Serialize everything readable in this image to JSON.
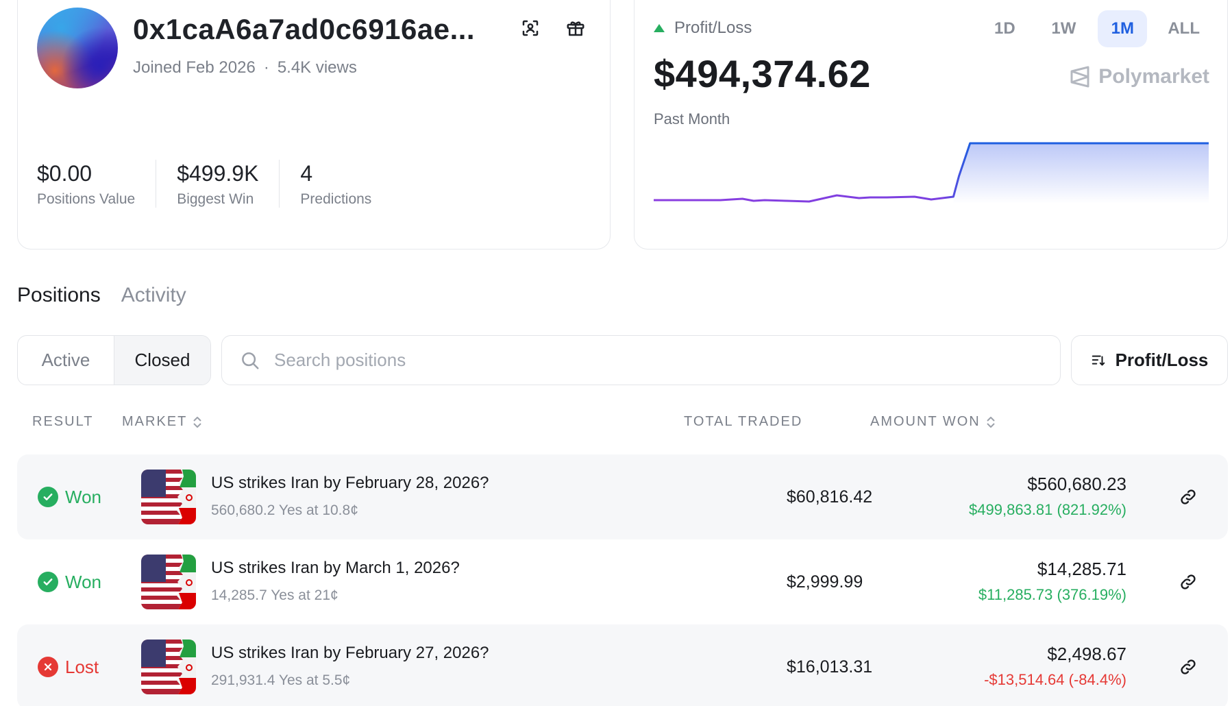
{
  "profile": {
    "username": "0x1caA6a7ad0c6916ae...",
    "joined": "Joined Feb 2026",
    "separator": "·",
    "views": "5.4K views",
    "stats": [
      {
        "value": "$0.00",
        "label": "Positions Value"
      },
      {
        "value": "$499.9K",
        "label": "Biggest Win"
      },
      {
        "value": "4",
        "label": "Predictions"
      }
    ]
  },
  "pnl": {
    "title": "Profit/Loss",
    "value": "$494,374.62",
    "period": "Past Month",
    "brand": "Polymarket",
    "ranges": [
      "1D",
      "1W",
      "1M",
      "ALL"
    ],
    "active_range": "1M",
    "chart_data": {
      "type": "line",
      "x": [
        0,
        4,
        8,
        12,
        16,
        18,
        20,
        24,
        28,
        33,
        37,
        39,
        42,
        47,
        50,
        54,
        55,
        57,
        100
      ],
      "values": [
        0.05,
        0.05,
        0.05,
        0.05,
        0.07,
        0.04,
        0.05,
        0.04,
        0.03,
        0.12,
        0.08,
        0.09,
        0.09,
        0.1,
        0.06,
        0.1,
        0.4,
        0.88,
        0.88
      ],
      "colors": {
        "line_start": "#8b3ee0",
        "line_end": "#1f5fe0",
        "fill": "#6b85ee"
      },
      "grid": false
    }
  },
  "tabs": {
    "positions": "Positions",
    "activity": "Activity"
  },
  "filters": {
    "active": "Active",
    "closed": "Closed",
    "search_placeholder": "Search positions",
    "sort_label": "Profit/Loss"
  },
  "table": {
    "headers": {
      "result": "RESULT",
      "market": "MARKET",
      "total_traded": "TOTAL TRADED",
      "amount_won": "AMOUNT WON"
    },
    "rows": [
      {
        "result": "Won",
        "title": "US strikes Iran by February 28, 2026?",
        "subtitle": "560,680.2 Yes at 10.8¢",
        "traded": "$60,816.42",
        "amount": "$560,680.23",
        "delta": "$499,863.81 (821.92%)"
      },
      {
        "result": "Won",
        "title": "US strikes Iran by March 1, 2026?",
        "subtitle": "14,285.7 Yes at 21¢",
        "traded": "$2,999.99",
        "amount": "$14,285.71",
        "delta": "$11,285.73 (376.19%)"
      },
      {
        "result": "Lost",
        "title": "US strikes Iran by February 27, 2026?",
        "subtitle": "291,931.4 Yes at 5.5¢",
        "traded": "$16,013.31",
        "amount": "$2,498.67",
        "delta": "-$13,514.64 (-84.4%)"
      }
    ]
  },
  "colors": {
    "won": "#27ae60",
    "lost": "#e53935",
    "accent": "#1f5fe0"
  },
  "icons": {
    "scan": "face-scan-icon",
    "gift": "gift-icon",
    "search": "search-icon",
    "sort": "sort-icon",
    "link": "link-icon",
    "won": "check-circle-icon",
    "lost": "x-circle-icon",
    "brand": "polymarket-logo-icon"
  }
}
